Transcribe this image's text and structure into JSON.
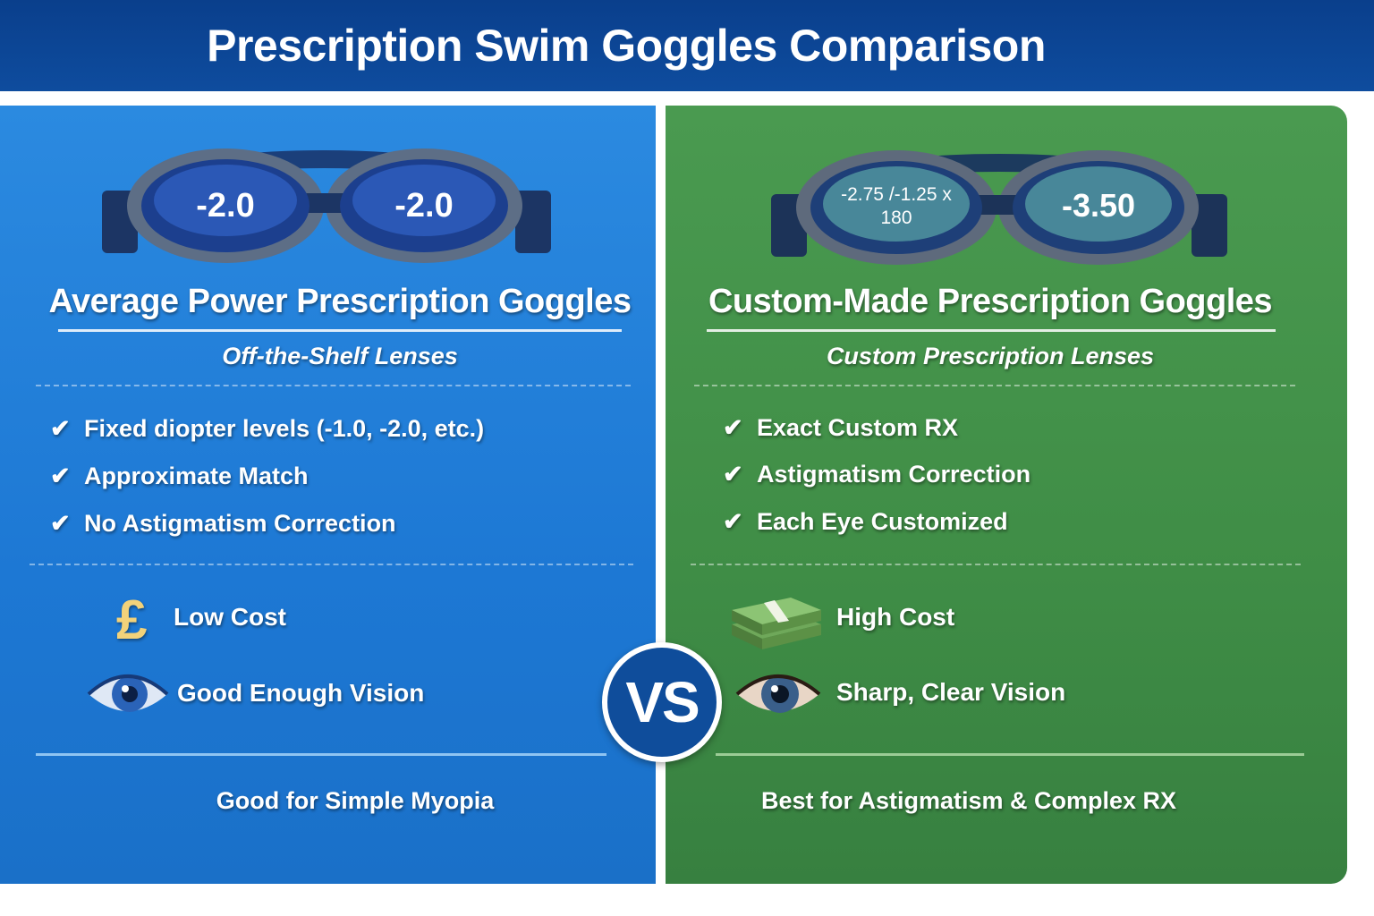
{
  "header": {
    "title": "Prescription Swim Goggles Comparison"
  },
  "vs_label": "VS",
  "left": {
    "lens_left": "-2.0",
    "lens_right": "-2.0",
    "title": "Average Power Prescription Goggles",
    "subtitle": "Off-the-Shelf Lenses",
    "checks": [
      "Fixed diopter levels (-1.0, -2.0, etc.)",
      "Approximate Match",
      "No Astigmatism Correction"
    ],
    "cost_icon": "pound-sign-icon",
    "cost": "Low Cost",
    "vision_icon": "eye-icon",
    "vision": "Good Enough Vision",
    "bottom": "Good for Simple Myopia",
    "color": "#1f7fd8"
  },
  "right": {
    "lens_left_line1": "-2.75 /-1.25 x",
    "lens_left_line2": "180",
    "lens_right": "-3.50",
    "title": "Custom-Made Prescription Goggles",
    "subtitle": "Custom Prescription Lenses",
    "checks": [
      "Exact Custom RX",
      "Astigmatism Correction",
      "Each Eye Customized"
    ],
    "cost_icon": "money-stack-icon",
    "cost": "High Cost",
    "vision_icon": "eye-icon",
    "vision": "Sharp, Clear Vision",
    "bottom": "Best for Astigmatism & Complex RX",
    "color": "#3f8d46"
  },
  "check_mark": "✔"
}
